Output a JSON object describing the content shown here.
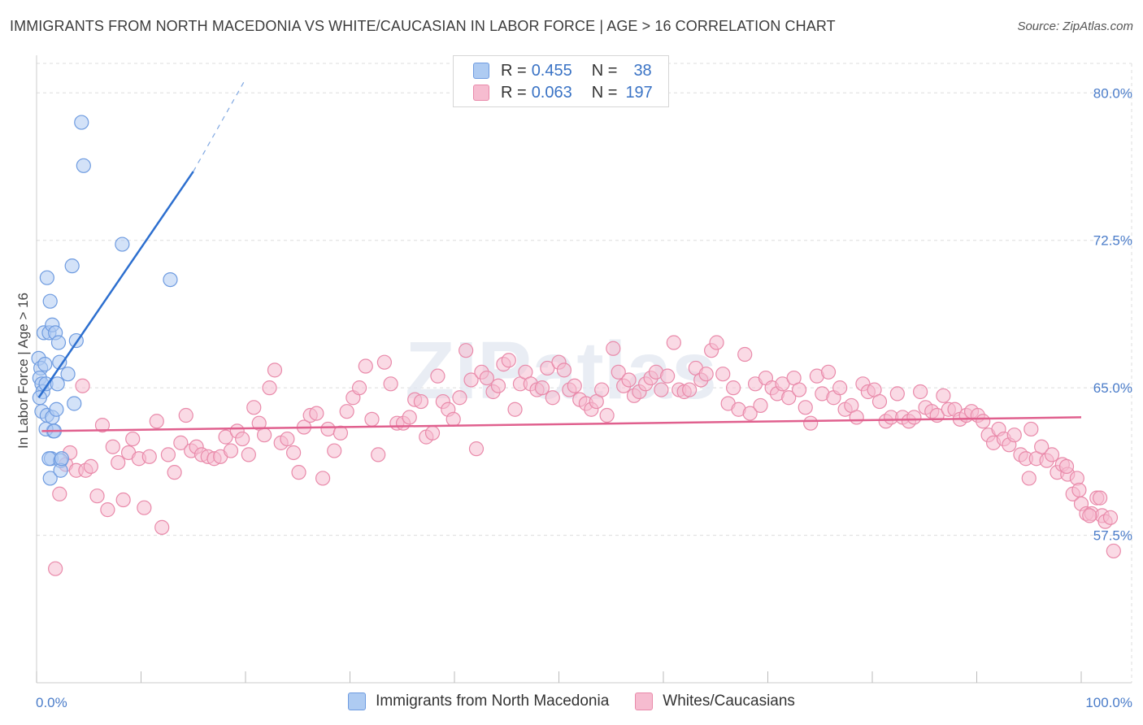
{
  "title": "IMMIGRANTS FROM NORTH MACEDONIA VS WHITE/CAUCASIAN IN LABOR FORCE | AGE > 16 CORRELATION CHART",
  "source": "Source: ZipAtlas.com",
  "watermark": "ZIPatlas",
  "legend": {
    "series1": {
      "r_label": "R =",
      "r_value": "0.455",
      "n_label": "N =",
      "n_value": "38"
    },
    "series2": {
      "r_label": "R =",
      "r_value": "0.063",
      "n_label": "N =",
      "n_value": "197"
    }
  },
  "colors": {
    "blue_fill": "#aecbf2",
    "blue_stroke": "#6e9be0",
    "blue_line": "#2d6fcf",
    "pink_fill": "#f6bcd0",
    "pink_stroke": "#e98aaa",
    "pink_line": "#e0608e",
    "grid": "#dddddd",
    "tick_text": "#4a7cc9"
  },
  "chart_data": {
    "type": "scatter",
    "title": "IMMIGRANTS FROM NORTH MACEDONIA VS WHITE/CAUCASIAN IN LABOR FORCE | AGE > 16 CORRELATION CHART",
    "xlabel": "",
    "ylabel": "In Labor Force | Age > 16",
    "xlim": [
      0,
      100
    ],
    "ylim": [
      50.0,
      81.5
    ],
    "x_tick_labels": [
      "0.0%",
      "100.0%"
    ],
    "y_ticks": [
      57.5,
      65.0,
      72.5,
      80.0
    ],
    "y_tick_labels": [
      "57.5%",
      "65.0%",
      "72.5%",
      "80.0%"
    ],
    "grid": true,
    "series": [
      {
        "name": "Immigrants from North Macedonia",
        "R": 0.455,
        "N": 38,
        "points": [
          [
            0.2,
            66.5
          ],
          [
            0.4,
            66.0
          ],
          [
            0.3,
            65.5
          ],
          [
            0.5,
            65.2
          ],
          [
            0.6,
            64.8
          ],
          [
            0.5,
            63.8
          ],
          [
            0.8,
            66.2
          ],
          [
            0.9,
            65.2
          ],
          [
            1.0,
            63.6
          ],
          [
            0.7,
            67.8
          ],
          [
            1.2,
            67.8
          ],
          [
            1.5,
            68.2
          ],
          [
            1.8,
            67.8
          ],
          [
            1.0,
            70.6
          ],
          [
            1.3,
            69.4
          ],
          [
            1.5,
            63.5
          ],
          [
            1.6,
            62.8
          ],
          [
            1.4,
            61.4
          ],
          [
            1.2,
            61.4
          ],
          [
            1.3,
            60.4
          ],
          [
            1.9,
            63.9
          ],
          [
            2.0,
            65.2
          ],
          [
            2.1,
            67.3
          ],
          [
            2.2,
            66.3
          ],
          [
            2.3,
            61.3
          ],
          [
            2.3,
            60.8
          ],
          [
            2.4,
            61.4
          ],
          [
            3.0,
            65.7
          ],
          [
            3.4,
            71.2
          ],
          [
            3.6,
            64.2
          ],
          [
            3.8,
            67.4
          ],
          [
            4.3,
            78.5
          ],
          [
            4.5,
            76.3
          ],
          [
            8.2,
            72.3
          ],
          [
            12.8,
            70.5
          ],
          [
            0.3,
            64.5
          ],
          [
            0.9,
            62.9
          ],
          [
            1.7,
            62.8
          ]
        ],
        "trend": {
          "x0": 0.2,
          "y0": 64.5,
          "x1": 15.0,
          "y1": 76.0,
          "dash_x1": 20.0,
          "dash_y1": 80.7
        }
      },
      {
        "name": "Whites/Caucasians",
        "R": 0.063,
        "N": 197,
        "points": [
          [
            1.8,
            55.8
          ],
          [
            2.2,
            59.6
          ],
          [
            2.8,
            61.1
          ],
          [
            3.2,
            61.7
          ],
          [
            3.8,
            60.8
          ],
          [
            4.4,
            65.1
          ],
          [
            4.7,
            60.8
          ],
          [
            5.2,
            61.0
          ],
          [
            5.8,
            59.5
          ],
          [
            6.3,
            63.1
          ],
          [
            6.8,
            58.8
          ],
          [
            7.3,
            62.0
          ],
          [
            7.8,
            61.2
          ],
          [
            8.3,
            59.3
          ],
          [
            8.8,
            61.7
          ],
          [
            9.2,
            62.4
          ],
          [
            9.8,
            61.4
          ],
          [
            10.3,
            58.9
          ],
          [
            10.8,
            61.5
          ],
          [
            11.5,
            63.3
          ],
          [
            12.0,
            57.9
          ],
          [
            12.6,
            61.6
          ],
          [
            13.2,
            60.7
          ],
          [
            13.8,
            62.2
          ],
          [
            14.3,
            63.6
          ],
          [
            14.8,
            61.8
          ],
          [
            15.3,
            62.0
          ],
          [
            15.8,
            61.6
          ],
          [
            16.4,
            61.5
          ],
          [
            17.0,
            61.4
          ],
          [
            17.6,
            61.5
          ],
          [
            18.1,
            62.5
          ],
          [
            18.6,
            61.8
          ],
          [
            19.2,
            62.8
          ],
          [
            19.7,
            62.4
          ],
          [
            20.3,
            61.6
          ],
          [
            20.8,
            64.0
          ],
          [
            21.3,
            63.2
          ],
          [
            21.8,
            62.6
          ],
          [
            22.3,
            65.0
          ],
          [
            22.8,
            65.9
          ],
          [
            23.4,
            62.2
          ],
          [
            24.0,
            62.4
          ],
          [
            24.6,
            61.7
          ],
          [
            25.1,
            60.7
          ],
          [
            25.6,
            63.0
          ],
          [
            26.2,
            63.6
          ],
          [
            26.8,
            63.7
          ],
          [
            27.4,
            60.4
          ],
          [
            27.9,
            62.9
          ],
          [
            28.5,
            61.8
          ],
          [
            29.1,
            62.7
          ],
          [
            29.7,
            63.8
          ],
          [
            30.3,
            64.5
          ],
          [
            30.9,
            65.0
          ],
          [
            31.5,
            66.1
          ],
          [
            32.1,
            63.4
          ],
          [
            32.7,
            61.6
          ],
          [
            33.3,
            66.3
          ],
          [
            33.9,
            65.2
          ],
          [
            34.5,
            63.2
          ],
          [
            35.1,
            63.2
          ],
          [
            35.7,
            63.5
          ],
          [
            36.2,
            64.4
          ],
          [
            36.8,
            64.3
          ],
          [
            37.3,
            62.5
          ],
          [
            37.9,
            62.7
          ],
          [
            38.4,
            65.6
          ],
          [
            38.9,
            64.3
          ],
          [
            39.4,
            63.9
          ],
          [
            39.9,
            63.4
          ],
          [
            40.5,
            64.5
          ],
          [
            41.1,
            66.9
          ],
          [
            41.6,
            65.4
          ],
          [
            42.1,
            61.9
          ],
          [
            42.6,
            65.8
          ],
          [
            43.1,
            65.5
          ],
          [
            43.7,
            64.8
          ],
          [
            44.2,
            65.1
          ],
          [
            44.7,
            66.2
          ],
          [
            45.2,
            66.4
          ],
          [
            45.8,
            63.9
          ],
          [
            46.3,
            65.2
          ],
          [
            46.8,
            65.8
          ],
          [
            47.3,
            65.2
          ],
          [
            47.9,
            64.9
          ],
          [
            48.4,
            65.0
          ],
          [
            48.9,
            66.0
          ],
          [
            49.4,
            64.5
          ],
          [
            50.0,
            66.3
          ],
          [
            50.5,
            65.9
          ],
          [
            51.0,
            64.9
          ],
          [
            51.5,
            65.1
          ],
          [
            52.0,
            64.4
          ],
          [
            52.6,
            64.2
          ],
          [
            53.1,
            63.9
          ],
          [
            53.6,
            64.3
          ],
          [
            54.1,
            64.9
          ],
          [
            54.6,
            63.6
          ],
          [
            55.2,
            67.0
          ],
          [
            55.7,
            65.8
          ],
          [
            56.2,
            65.1
          ],
          [
            56.7,
            65.4
          ],
          [
            57.2,
            64.6
          ],
          [
            57.7,
            64.8
          ],
          [
            58.3,
            65.2
          ],
          [
            58.8,
            65.5
          ],
          [
            59.3,
            65.8
          ],
          [
            59.8,
            64.9
          ],
          [
            60.4,
            65.6
          ],
          [
            61.0,
            67.3
          ],
          [
            61.5,
            64.9
          ],
          [
            62.0,
            64.8
          ],
          [
            62.5,
            64.9
          ],
          [
            63.1,
            66.0
          ],
          [
            63.6,
            65.4
          ],
          [
            64.1,
            65.7
          ],
          [
            64.6,
            66.9
          ],
          [
            65.1,
            67.3
          ],
          [
            65.7,
            65.7
          ],
          [
            66.2,
            64.2
          ],
          [
            66.7,
            65.0
          ],
          [
            67.2,
            63.9
          ],
          [
            67.8,
            66.7
          ],
          [
            68.3,
            63.7
          ],
          [
            68.8,
            65.2
          ],
          [
            69.3,
            64.1
          ],
          [
            69.8,
            65.5
          ],
          [
            70.4,
            65.0
          ],
          [
            70.9,
            64.7
          ],
          [
            71.4,
            65.2
          ],
          [
            72.0,
            64.5
          ],
          [
            72.5,
            65.5
          ],
          [
            73.0,
            64.9
          ],
          [
            73.6,
            64.0
          ],
          [
            74.1,
            63.2
          ],
          [
            74.7,
            65.6
          ],
          [
            75.2,
            64.7
          ],
          [
            75.8,
            65.8
          ],
          [
            76.3,
            64.5
          ],
          [
            76.9,
            65.0
          ],
          [
            77.4,
            63.9
          ],
          [
            78.0,
            64.1
          ],
          [
            78.5,
            63.5
          ],
          [
            79.1,
            65.2
          ],
          [
            79.6,
            64.8
          ],
          [
            80.2,
            64.9
          ],
          [
            80.7,
            64.3
          ],
          [
            81.3,
            63.3
          ],
          [
            81.8,
            63.5
          ],
          [
            82.4,
            64.7
          ],
          [
            82.9,
            63.5
          ],
          [
            83.5,
            63.3
          ],
          [
            84.0,
            63.5
          ],
          [
            84.6,
            64.8
          ],
          [
            85.1,
            64.0
          ],
          [
            85.7,
            63.8
          ],
          [
            86.2,
            63.6
          ],
          [
            86.8,
            64.6
          ],
          [
            87.3,
            63.9
          ],
          [
            87.9,
            63.9
          ],
          [
            88.4,
            63.4
          ],
          [
            89.0,
            63.6
          ],
          [
            89.5,
            63.8
          ],
          [
            90.1,
            63.6
          ],
          [
            90.6,
            63.3
          ],
          [
            91.1,
            62.6
          ],
          [
            91.6,
            62.2
          ],
          [
            92.1,
            62.9
          ],
          [
            92.6,
            62.4
          ],
          [
            93.1,
            62.1
          ],
          [
            93.6,
            62.6
          ],
          [
            94.2,
            61.6
          ],
          [
            94.7,
            61.4
          ],
          [
            95.2,
            62.9
          ],
          [
            95.7,
            61.4
          ],
          [
            96.2,
            62.0
          ],
          [
            96.7,
            61.3
          ],
          [
            97.2,
            61.6
          ],
          [
            97.7,
            60.7
          ],
          [
            98.2,
            61.1
          ],
          [
            98.7,
            60.6
          ],
          [
            99.2,
            59.6
          ],
          [
            99.6,
            60.4
          ],
          [
            100.0,
            59.1
          ],
          [
            100.5,
            58.6
          ],
          [
            101.0,
            58.6
          ],
          [
            101.5,
            59.4
          ],
          [
            102.0,
            58.5
          ],
          [
            98.6,
            61.0
          ],
          [
            99.8,
            59.8
          ],
          [
            100.8,
            58.5
          ],
          [
            101.8,
            59.4
          ],
          [
            102.3,
            58.2
          ],
          [
            102.8,
            58.4
          ],
          [
            103.1,
            56.7
          ],
          [
            95.0,
            60.4
          ]
        ],
        "trend": {
          "x0": 0.5,
          "y0": 62.8,
          "x1": 100.0,
          "y1": 63.5
        }
      }
    ]
  },
  "bottom_legend": [
    {
      "label": "Immigrants from North Macedonia"
    },
    {
      "label": "Whites/Caucasians"
    }
  ]
}
